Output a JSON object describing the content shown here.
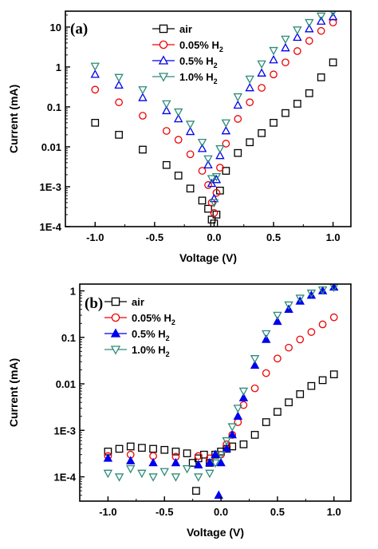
{
  "chart_data": [
    {
      "type": "scatter",
      "panel_label": "(a)",
      "xlabel": "Voltage (V)",
      "ylabel": "Current (mA)",
      "xlim": [
        -1.25,
        1.15
      ],
      "ylim": [
        0.0001,
        25
      ],
      "yscale": "log",
      "x_ticks": [
        -1.0,
        -0.5,
        0.0,
        0.5,
        1.0
      ],
      "x_tick_labels": [
        "-1.0",
        "-0.5",
        "0.0",
        "0.5",
        "1.0"
      ],
      "y_ticks": [
        0.0001,
        0.001,
        0.01,
        0.1,
        1,
        10
      ],
      "y_tick_labels": [
        "1E-4",
        "1E-3",
        "0.01",
        "0.1",
        "1",
        "10"
      ],
      "legend_position": "top-center",
      "grid": false,
      "series": [
        {
          "name": "air",
          "legend_main": "air",
          "legend_sub": "",
          "marker": "square",
          "color": "#000000",
          "fill": "none",
          "points": [
            [
              -1.0,
              0.04
            ],
            [
              -0.8,
              0.02
            ],
            [
              -0.6,
              0.0085
            ],
            [
              -0.4,
              0.0035
            ],
            [
              -0.3,
              0.0019
            ],
            [
              -0.2,
              0.0009
            ],
            [
              -0.1,
              0.00045
            ],
            [
              -0.05,
              0.00028
            ],
            [
              -0.02,
              0.00015
            ],
            [
              0.0,
              0.00012
            ],
            [
              0.02,
              0.0002
            ],
            [
              0.05,
              0.0008
            ],
            [
              0.1,
              0.0025
            ],
            [
              0.2,
              0.007
            ],
            [
              0.3,
              0.013
            ],
            [
              0.4,
              0.022
            ],
            [
              0.5,
              0.04
            ],
            [
              0.6,
              0.07
            ],
            [
              0.7,
              0.12
            ],
            [
              0.8,
              0.22
            ],
            [
              0.9,
              0.55
            ],
            [
              1.0,
              1.3
            ]
          ]
        },
        {
          "name": "0.05% H2",
          "legend_main": "0.05% H",
          "legend_sub": "2",
          "marker": "circle",
          "color": "#ee0000",
          "fill": "none",
          "points": [
            [
              -1.0,
              0.27
            ],
            [
              -0.8,
              0.13
            ],
            [
              -0.6,
              0.06
            ],
            [
              -0.4,
              0.025
            ],
            [
              -0.3,
              0.015
            ],
            [
              -0.2,
              0.0065
            ],
            [
              -0.1,
              0.0025
            ],
            [
              -0.05,
              0.0011
            ],
            [
              -0.02,
              0.0004
            ],
            [
              0.0,
              0.00022
            ],
            [
              0.02,
              0.0007
            ],
            [
              0.05,
              0.003
            ],
            [
              0.1,
              0.012
            ],
            [
              0.2,
              0.05
            ],
            [
              0.3,
              0.13
            ],
            [
              0.4,
              0.3
            ],
            [
              0.5,
              0.65
            ],
            [
              0.6,
              1.3
            ],
            [
              0.7,
              2.5
            ],
            [
              0.8,
              4.5
            ],
            [
              0.9,
              8.0
            ],
            [
              1.0,
              13
            ]
          ]
        },
        {
          "name": "0.5% H2",
          "legend_main": "0.5% H",
          "legend_sub": "2",
          "marker": "triangle-up",
          "color": "#0000ee",
          "fill": "none",
          "points": [
            [
              -1.0,
              0.65
            ],
            [
              -0.8,
              0.35
            ],
            [
              -0.6,
              0.17
            ],
            [
              -0.4,
              0.08
            ],
            [
              -0.3,
              0.05
            ],
            [
              -0.2,
              0.024
            ],
            [
              -0.1,
              0.009
            ],
            [
              -0.05,
              0.0035
            ],
            [
              -0.02,
              0.0012
            ],
            [
              0.0,
              0.0005
            ],
            [
              0.02,
              0.0015
            ],
            [
              0.05,
              0.006
            ],
            [
              0.1,
              0.025
            ],
            [
              0.2,
              0.11
            ],
            [
              0.3,
              0.3
            ],
            [
              0.4,
              0.7
            ],
            [
              0.5,
              1.5
            ],
            [
              0.6,
              3.0
            ],
            [
              0.7,
              5.5
            ],
            [
              0.8,
              9.0
            ],
            [
              0.9,
              14
            ],
            [
              1.0,
              18
            ]
          ]
        },
        {
          "name": "1.0% H2",
          "legend_main": "1.0% H",
          "legend_sub": "2",
          "marker": "triangle-down",
          "color": "#2e8b7a",
          "fill": "none",
          "points": [
            [
              -1.0,
              1.05
            ],
            [
              -0.8,
              0.55
            ],
            [
              -0.6,
              0.27
            ],
            [
              -0.4,
              0.12
            ],
            [
              -0.3,
              0.075
            ],
            [
              -0.2,
              0.037
            ],
            [
              -0.1,
              0.013
            ],
            [
              -0.05,
              0.005
            ],
            [
              -0.02,
              0.0016
            ],
            [
              0.0,
              0.0004
            ],
            [
              0.02,
              0.0018
            ],
            [
              0.05,
              0.009
            ],
            [
              0.1,
              0.04
            ],
            [
              0.2,
              0.18
            ],
            [
              0.3,
              0.5
            ],
            [
              0.4,
              1.2
            ],
            [
              0.5,
              2.6
            ],
            [
              0.6,
              5.0
            ],
            [
              0.7,
              8.5
            ],
            [
              0.8,
              13
            ],
            [
              0.9,
              19
            ],
            [
              1.0,
              24
            ]
          ]
        }
      ]
    },
    {
      "type": "scatter",
      "panel_label": "(b)",
      "xlabel": "Voltage (V)",
      "ylabel": "Current (mA)",
      "xlim": [
        -1.25,
        1.15
      ],
      "ylim": [
        3e-05,
        1.4
      ],
      "yscale": "log",
      "x_ticks": [
        -1.0,
        -0.5,
        0.0,
        0.5,
        1.0
      ],
      "x_tick_labels": [
        "-1.0",
        "-0.5",
        "0.0",
        "0.5",
        "1.0"
      ],
      "y_ticks": [
        0.0001,
        0.001,
        0.01,
        0.1,
        1
      ],
      "y_tick_labels": [
        "1E-4",
        "1E-3",
        "0.01",
        "0.1",
        "1"
      ],
      "legend_position": "top-left",
      "grid": false,
      "series": [
        {
          "name": "air",
          "legend_main": "air",
          "legend_sub": "",
          "marker": "square",
          "color": "#000000",
          "fill": "none",
          "points": [
            [
              -1.0,
              0.00035
            ],
            [
              -0.9,
              0.0004
            ],
            [
              -0.8,
              0.00045
            ],
            [
              -0.7,
              0.00042
            ],
            [
              -0.6,
              0.0004
            ],
            [
              -0.5,
              0.00038
            ],
            [
              -0.4,
              0.00035
            ],
            [
              -0.3,
              0.00032
            ],
            [
              -0.25,
              0.0002
            ],
            [
              -0.22,
              5e-05
            ],
            [
              -0.2,
              0.00025
            ],
            [
              -0.15,
              0.0003
            ],
            [
              -0.1,
              0.0002
            ],
            [
              -0.05,
              0.0003
            ],
            [
              0.0,
              0.00035
            ],
            [
              0.05,
              0.0004
            ],
            [
              0.1,
              0.00045
            ],
            [
              0.2,
              0.0005
            ],
            [
              0.3,
              0.0008
            ],
            [
              0.4,
              0.0015
            ],
            [
              0.5,
              0.0025
            ],
            [
              0.6,
              0.004
            ],
            [
              0.7,
              0.006
            ],
            [
              0.8,
              0.009
            ],
            [
              0.9,
              0.012
            ],
            [
              1.0,
              0.016
            ]
          ]
        },
        {
          "name": "0.05% H2",
          "legend_main": "0.05% H",
          "legend_sub": "2",
          "marker": "circle",
          "color": "#ee0000",
          "fill": "none",
          "points": [
            [
              -1.0,
              0.00028
            ],
            [
              -0.8,
              0.0003
            ],
            [
              -0.6,
              0.00028
            ],
            [
              -0.4,
              0.00027
            ],
            [
              -0.2,
              0.00028
            ],
            [
              -0.1,
              0.00025
            ],
            [
              0.0,
              0.0003
            ],
            [
              0.05,
              0.0005
            ],
            [
              0.1,
              0.0008
            ],
            [
              0.15,
              0.0015
            ],
            [
              0.2,
              0.0035
            ],
            [
              0.3,
              0.008
            ],
            [
              0.4,
              0.017
            ],
            [
              0.5,
              0.035
            ],
            [
              0.6,
              0.06
            ],
            [
              0.7,
              0.09
            ],
            [
              0.8,
              0.13
            ],
            [
              0.9,
              0.19
            ],
            [
              1.0,
              0.27
            ]
          ]
        },
        {
          "name": "0.5% H2",
          "legend_main": "0.5% H",
          "legend_sub": "2",
          "marker": "triangle-up",
          "color": "#0000ee",
          "fill": "#0000ee",
          "points": [
            [
              -1.0,
              0.00025
            ],
            [
              -0.8,
              0.00022
            ],
            [
              -0.6,
              0.0002
            ],
            [
              -0.4,
              0.0002
            ],
            [
              -0.2,
              0.00018
            ],
            [
              -0.1,
              0.0002
            ],
            [
              -0.05,
              0.0003
            ],
            [
              -0.02,
              4e-05
            ],
            [
              0.0,
              0.0002
            ],
            [
              0.05,
              0.0004
            ],
            [
              0.1,
              0.0008
            ],
            [
              0.15,
              0.002
            ],
            [
              0.2,
              0.005
            ],
            [
              0.3,
              0.025
            ],
            [
              0.4,
              0.09
            ],
            [
              0.5,
              0.22
            ],
            [
              0.6,
              0.4
            ],
            [
              0.7,
              0.6
            ],
            [
              0.8,
              0.8
            ],
            [
              0.9,
              1.0
            ],
            [
              1.0,
              1.2
            ]
          ]
        },
        {
          "name": "1.0% H2",
          "legend_main": "1.0% H",
          "legend_sub": "2",
          "marker": "triangle-down",
          "color": "#2e8b7a",
          "fill": "none",
          "points": [
            [
              -1.0,
              0.00012
            ],
            [
              -0.9,
              0.0001
            ],
            [
              -0.8,
              0.00015
            ],
            [
              -0.7,
              0.00012
            ],
            [
              -0.6,
              0.0001
            ],
            [
              -0.5,
              0.00013
            ],
            [
              -0.4,
              0.0001
            ],
            [
              -0.3,
              0.00015
            ],
            [
              -0.2,
              0.0001
            ],
            [
              -0.1,
              0.00012
            ],
            [
              -0.05,
              0.0002
            ],
            [
              0.0,
              0.0003
            ],
            [
              0.05,
              0.0006
            ],
            [
              0.1,
              0.0012
            ],
            [
              0.15,
              0.003
            ],
            [
              0.2,
              0.007
            ],
            [
              0.3,
              0.035
            ],
            [
              0.4,
              0.12
            ],
            [
              0.5,
              0.3
            ],
            [
              0.6,
              0.5
            ],
            [
              0.7,
              0.7
            ],
            [
              0.8,
              0.9
            ],
            [
              0.9,
              1.05
            ],
            [
              1.0,
              1.2
            ]
          ]
        }
      ]
    }
  ]
}
